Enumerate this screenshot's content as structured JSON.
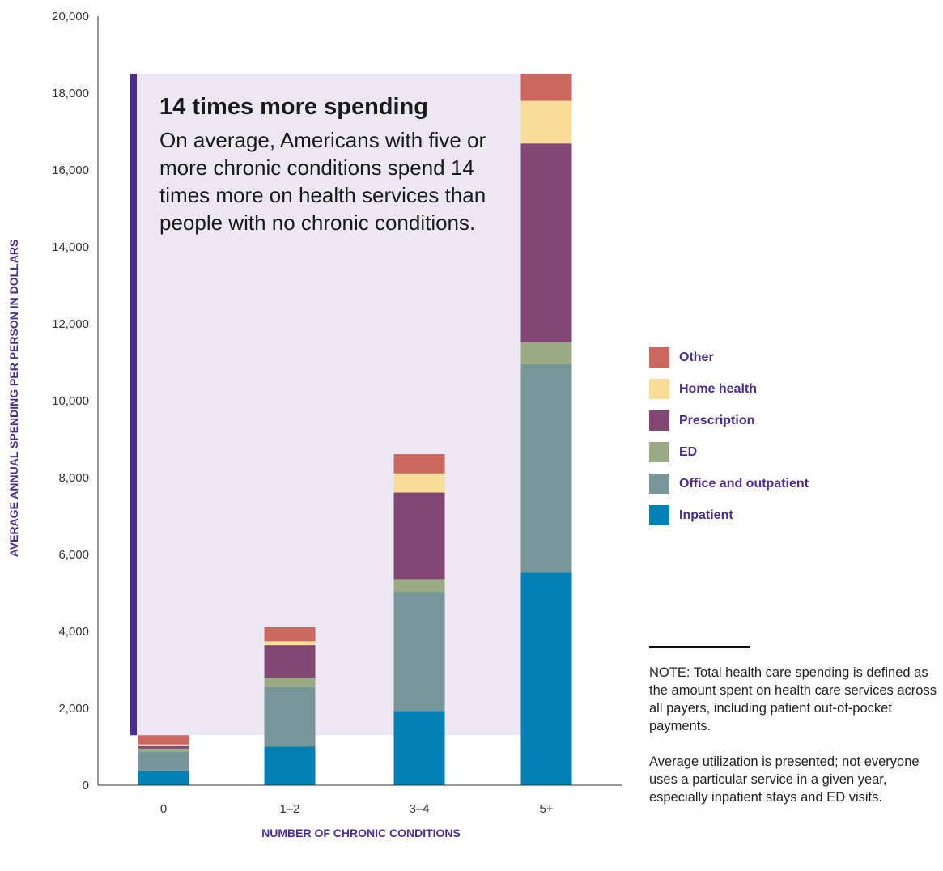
{
  "chart_data": {
    "type": "bar",
    "stacked": true,
    "categories": [
      "0",
      "1–2",
      "3–4",
      "5+"
    ],
    "series": [
      {
        "name": "Inpatient",
        "color": "#0081b4",
        "values": [
          380,
          1000,
          1930,
          5530
        ]
      },
      {
        "name": "Office and outpatient",
        "color": "#789698",
        "values": [
          500,
          1550,
          3100,
          5420
        ]
      },
      {
        "name": "ED",
        "color": "#9aaa83",
        "values": [
          70,
          250,
          330,
          570
        ]
      },
      {
        "name": "Prescription",
        "color": "#824775",
        "values": [
          80,
          840,
          2250,
          5170
        ]
      },
      {
        "name": "Home health",
        "color": "#f8dd98",
        "values": [
          30,
          100,
          500,
          1110
        ]
      },
      {
        "name": "Other",
        "color": "#cc6760",
        "values": [
          240,
          370,
          500,
          700
        ]
      }
    ],
    "yticks": [
      "0",
      "2,000",
      "4,000",
      "6,000",
      "8,000",
      "10,000",
      "12,000",
      "14,000",
      "16,000",
      "18,000",
      "20,000"
    ],
    "ylim": [
      0,
      20000
    ],
    "xlabel": "NUMBER OF CHRONIC CONDITIONS",
    "ylabel": "AVERAGE ANNUAL SPENDING PER PERSON IN DOLLARS",
    "callout": {
      "title": "14 times more spending",
      "body": "On average, Americans with five or more chronic conditions spend 14 times more on health services than people with no chronic conditions.",
      "span_y": [
        1300,
        18500
      ],
      "bar_color": "#4b2d8f",
      "fill_color": "#ece8f3"
    },
    "legend_position": "right"
  },
  "note": {
    "paragraph1": "NOTE: Total health care spending is defined as the amount spent on health care services across all payers, including patient out-of-pocket payments.",
    "paragraph2": "Average utilization is presented; not everyone uses a particular service in a given year, especially inpatient stays and ED visits."
  }
}
